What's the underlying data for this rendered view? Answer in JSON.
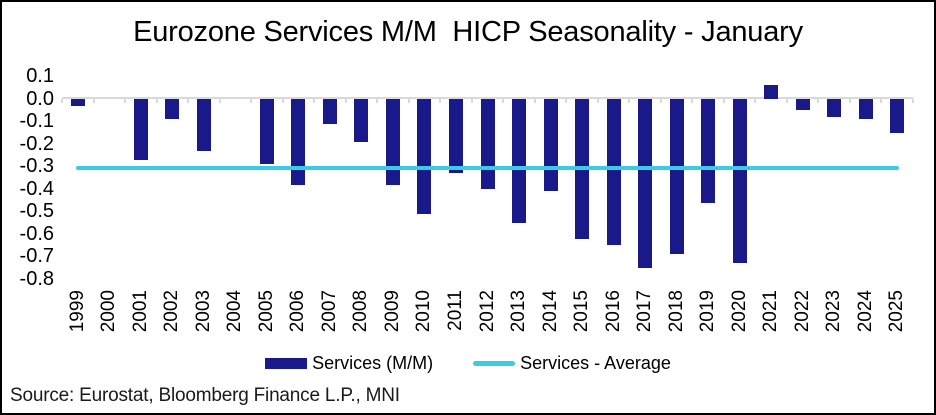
{
  "figure": {
    "source": "Source: Eurostat, Bloomberg Finance L.P., MNI"
  },
  "chart_data": {
    "type": "bar",
    "title": "Eurozone Services M/M  HICP Seasonality - January",
    "categories": [
      "1999",
      "2000",
      "2001",
      "2002",
      "2003",
      "2004",
      "2005",
      "2006",
      "2007",
      "2008",
      "2009",
      "2010",
      "2011",
      "2012",
      "2013",
      "2014",
      "2015",
      "2016",
      "2017",
      "2018",
      "2019",
      "2020",
      "2021",
      "2022",
      "2023",
      "2024",
      "2025"
    ],
    "series": [
      {
        "name": "Services (M/M)",
        "type": "bar",
        "color": "#191989",
        "values": [
          -0.03,
          0.0,
          -0.27,
          -0.09,
          -0.23,
          0.0,
          -0.29,
          -0.38,
          -0.11,
          -0.19,
          -0.38,
          -0.51,
          -0.33,
          -0.4,
          -0.55,
          -0.41,
          -0.62,
          -0.65,
          -0.75,
          -0.69,
          -0.46,
          -0.73,
          0.06,
          -0.05,
          -0.08,
          -0.09,
          -0.15
        ]
      },
      {
        "name": "Services - Average",
        "type": "line",
        "color": "#3ACBE8",
        "constant_value": -0.31
      }
    ],
    "xlabel": "",
    "ylabel": "",
    "ylim": [
      -0.8,
      0.1
    ],
    "ytick_step": 0.1,
    "y_ticks": [
      "0.1",
      "0.0",
      "-0.1",
      "-0.2",
      "-0.3",
      "-0.4",
      "-0.5",
      "-0.6",
      "-0.7",
      "-0.8"
    ],
    "grid": "zero-gridline-with-category-ticks-only",
    "gridline_color": "#D9D9D9",
    "legend_position": "bottom"
  }
}
